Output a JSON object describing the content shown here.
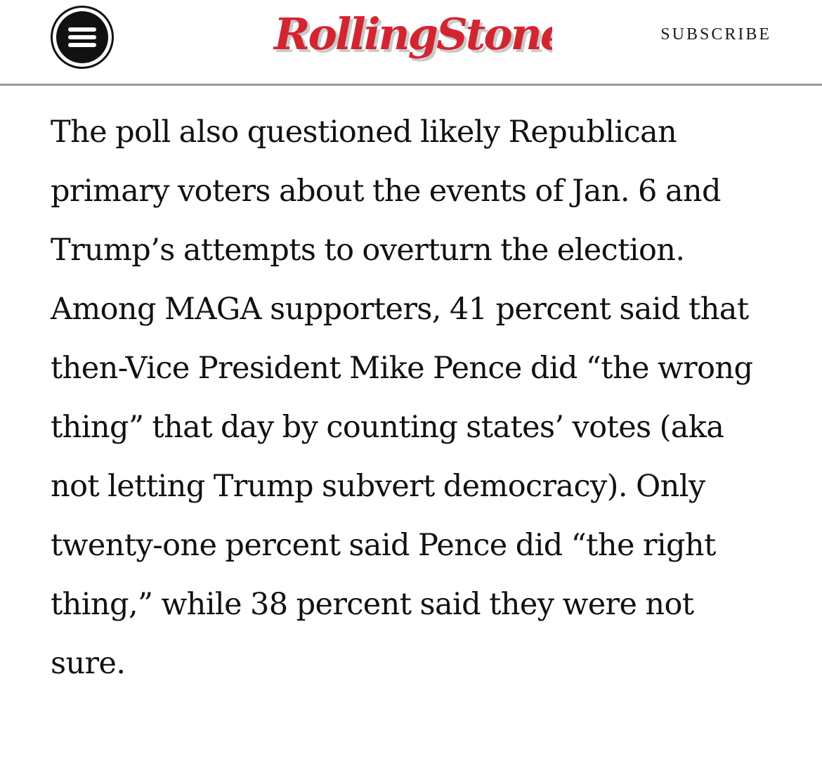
{
  "header": {
    "menu_icon": "hamburger-menu-icon",
    "logo_text": "RollingStone",
    "logo_color": "#d32531",
    "subscribe_label": "SUBSCRIBE"
  },
  "article": {
    "paragraph": "The poll also questioned likely Republican primary voters about the events of Jan. 6 and Trump’s attempts to overturn the election. Among MAGA supporters, 41 percent said that then-Vice President Mike Pence did “the wrong thing” that day by counting states’ votes (aka not letting Trump subvert democracy). Only twenty-one percent said Pence did “the right thing,” while 38 percent said they were not sure."
  }
}
